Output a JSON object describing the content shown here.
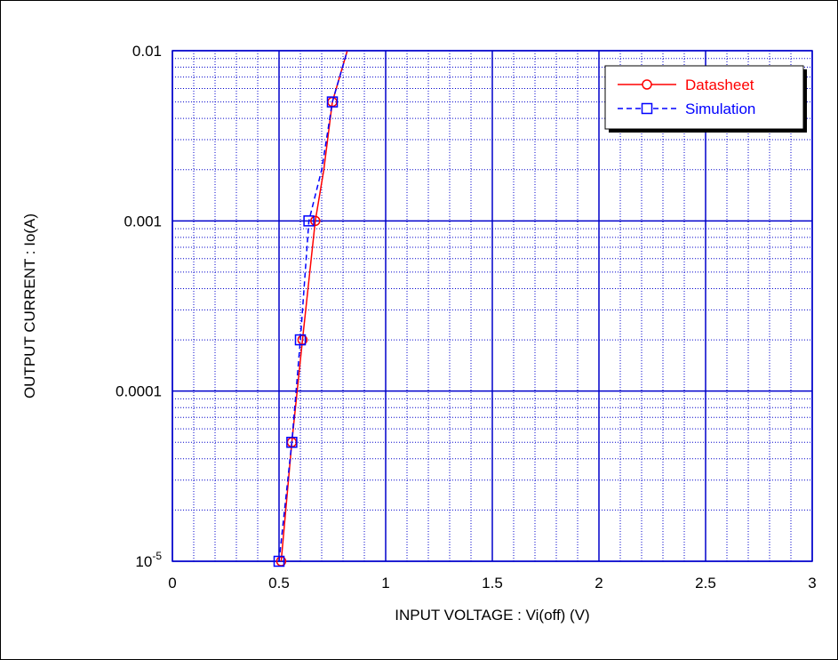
{
  "chart_data": {
    "type": "line",
    "title": "",
    "xlabel": "INPUT VOLTAGE : Vi(off) (V)",
    "ylabel": "OUTPUT CURRENT : Io(A)",
    "xlim": [
      0,
      3
    ],
    "ylim": [
      1e-05,
      0.01
    ],
    "yscale": "log",
    "x_ticks": [
      0,
      0.5,
      1,
      1.5,
      2,
      2.5,
      3
    ],
    "x_tick_labels": [
      "0",
      "0.5",
      "1",
      "1.5",
      "2",
      "2.5",
      "3"
    ],
    "y_ticks": [
      1e-05,
      0.0001,
      0.001,
      0.01
    ],
    "y_tick_labels": [
      {
        "base": "10",
        "exp": "-5"
      },
      {
        "base": "0.0001",
        "exp": ""
      },
      {
        "base": "0.001",
        "exp": ""
      },
      {
        "base": "0.01",
        "exp": ""
      }
    ],
    "grid": true,
    "legend_position": "top-right",
    "series": [
      {
        "name": "Datasheet",
        "color": "#ff0000",
        "marker": "circle",
        "line_style": "solid",
        "x": [
          0.51,
          0.56,
          0.61,
          0.67,
          0.75
        ],
        "y": [
          1e-05,
          5e-05,
          0.0002,
          0.001,
          0.005
        ],
        "curve_x": [
          0.51,
          0.56,
          0.61,
          0.67,
          0.71,
          0.75,
          0.82
        ],
        "curve_y": [
          1e-05,
          5e-05,
          0.0002,
          0.001,
          0.002,
          0.005,
          0.01
        ]
      },
      {
        "name": "Simulation",
        "color": "#0000ff",
        "marker": "square",
        "line_style": "dashed",
        "x": [
          0.5,
          0.56,
          0.6,
          0.64,
          0.75
        ],
        "y": [
          1e-05,
          5e-05,
          0.0002,
          0.001,
          0.005
        ],
        "curve_x": [
          0.5,
          0.56,
          0.6,
          0.64,
          0.7,
          0.75,
          0.82
        ],
        "curve_y": [
          1e-05,
          5e-05,
          0.0002,
          0.001,
          0.002,
          0.005,
          0.01
        ]
      }
    ]
  }
}
